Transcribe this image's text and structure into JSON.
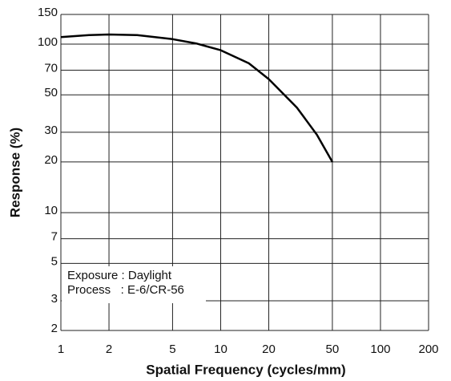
{
  "chart_data": {
    "type": "line",
    "x_label": "Spatial Frequency (cycles/mm)",
    "y_label": "Response (%)",
    "annotations": [
      "Exposure : Daylight",
      "Process   : E-6/CR-56"
    ],
    "x": [
      1,
      1.5,
      2,
      3,
      5,
      7,
      10,
      15,
      20,
      30,
      40,
      50
    ],
    "series": [
      {
        "color": "#000000",
        "values": [
          110,
          113,
          114,
          113,
          107,
          101,
          92,
          77,
          62,
          42,
          29,
          20
        ]
      }
    ],
    "xlim": [
      1,
      200
    ],
    "xticks": [
      1,
      2,
      5,
      10,
      20,
      50,
      100,
      200
    ],
    "ylim": [
      2,
      150
    ],
    "yticks": [
      2,
      3,
      5,
      7,
      10,
      20,
      30,
      50,
      70,
      100,
      150
    ],
    "xscale": "log",
    "yscale": "log",
    "grid": true
  }
}
